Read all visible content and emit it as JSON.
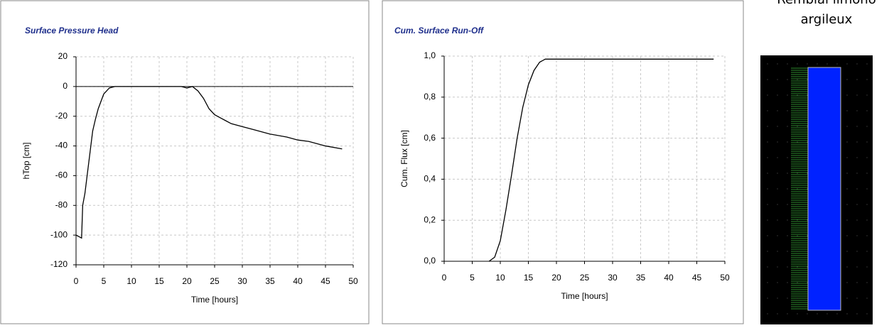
{
  "chart_data": [
    {
      "type": "line",
      "title": "Surface Pressure Head",
      "x_label": "Time [hours]",
      "y_label": "hTop [cm]",
      "series": [
        {
          "color": "#000000",
          "x": [
            0,
            0.5,
            1,
            1.2,
            1.6,
            2,
            2.5,
            3,
            3.5,
            4,
            4.5,
            5,
            5.5,
            6,
            7,
            8,
            10,
            12,
            14,
            16,
            17,
            18,
            19,
            20,
            21,
            22,
            23,
            24,
            25,
            26,
            27,
            28,
            30,
            32,
            35,
            38,
            40,
            42,
            45,
            48
          ],
          "values": [
            -100,
            -101,
            -102,
            -80,
            -72,
            -60,
            -45,
            -30,
            -22,
            -15,
            -10,
            -5,
            -3,
            -1,
            0,
            0,
            0,
            0,
            0,
            0,
            0,
            0,
            0,
            -1,
            0,
            -3,
            -8,
            -15,
            -19,
            -21,
            -23,
            -25,
            -27,
            -29,
            -32,
            -34,
            -36,
            -37,
            -40,
            -42
          ]
        }
      ],
      "xlim": [
        0,
        50
      ],
      "xticks": [
        0,
        5,
        10,
        15,
        20,
        25,
        30,
        35,
        40,
        45,
        50
      ],
      "ylim": [
        -120,
        20
      ],
      "yticks": [
        -120,
        -100,
        -80,
        -60,
        -40,
        -20,
        0,
        20
      ],
      "grid": true
    },
    {
      "type": "line",
      "title": "Cum. Surface Run-Off",
      "x_label": "Time [hours]",
      "y_label": "Cum. Flux [cm]",
      "series": [
        {
          "color": "#000000",
          "x": [
            8,
            9,
            10,
            11,
            12,
            13,
            14,
            15,
            16,
            17,
            18,
            19,
            48
          ],
          "values": [
            0,
            0.02,
            0.1,
            0.25,
            0.42,
            0.6,
            0.75,
            0.86,
            0.93,
            0.97,
            0.985,
            0.985,
            0.985
          ]
        }
      ],
      "xlim": [
        0,
        50
      ],
      "xticks": [
        0,
        5,
        10,
        15,
        20,
        25,
        30,
        35,
        40,
        45,
        50
      ],
      "ylim": [
        0,
        1
      ],
      "yticks": [
        {
          "value": 0,
          "label": "0,0"
        },
        {
          "value": 0.2,
          "label": "0,2"
        },
        {
          "value": 0.4,
          "label": "0,4"
        },
        {
          "value": 0.6,
          "label": "0,6"
        },
        {
          "value": 0.8,
          "label": "0,8"
        },
        {
          "value": 1,
          "label": "1,0"
        }
      ],
      "grid": true
    }
  ],
  "side_panel": {
    "label_lines": [
      "Remblai limono",
      "argileux"
    ]
  }
}
